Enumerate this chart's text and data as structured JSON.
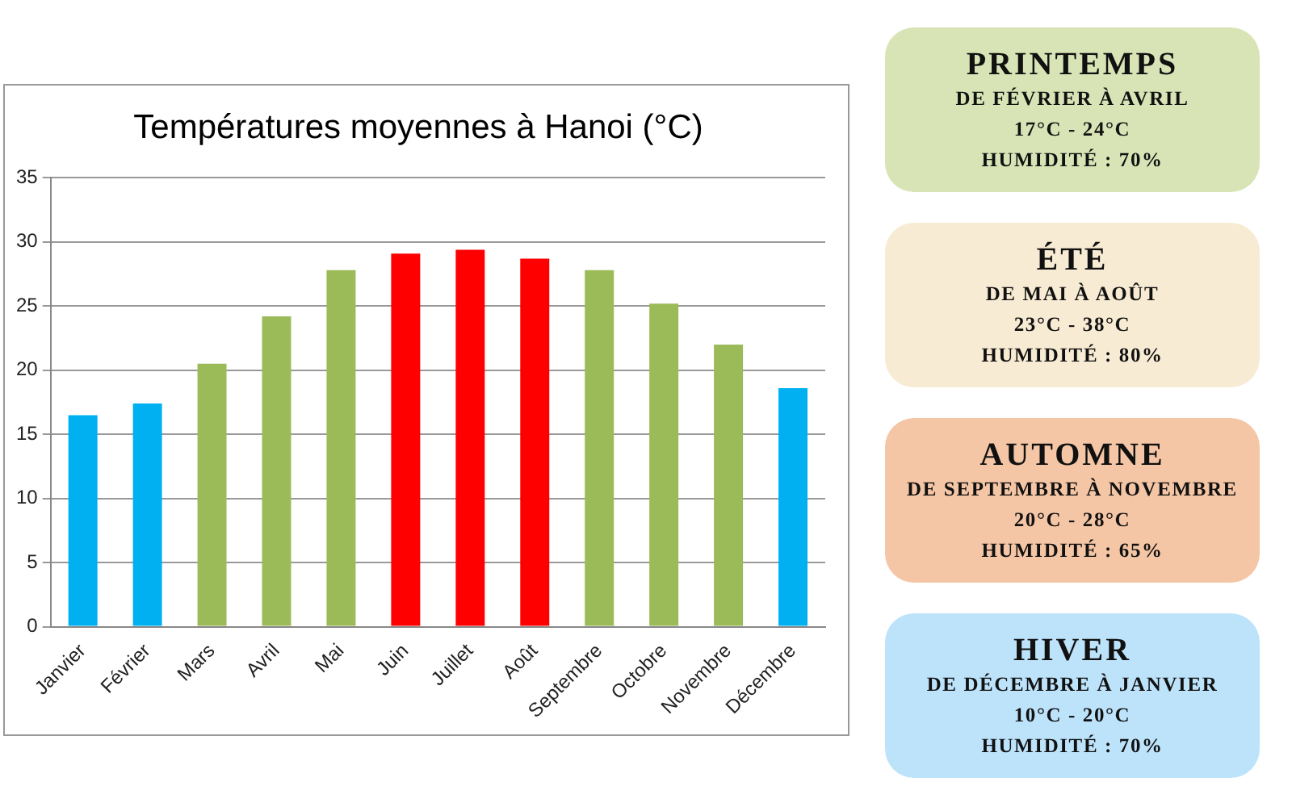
{
  "chart_data": [
    {
      "type": "bar",
      "title": "Températures moyennes à Hanoi (°C)",
      "categories": [
        "Janvier",
        "Février",
        "Mars",
        "Avril",
        "Mai",
        "Juin",
        "Juillet",
        "Août",
        "Septembre",
        "Octobre",
        "Novembre",
        "Décembre"
      ],
      "values": [
        16.5,
        17.4,
        20.5,
        24.2,
        27.8,
        29.1,
        29.4,
        28.7,
        27.8,
        25.2,
        22.0,
        18.6
      ],
      "colors": [
        "#00b0f0",
        "#00b0f0",
        "#9bbb59",
        "#9bbb59",
        "#9bbb59",
        "#ff0000",
        "#ff0000",
        "#ff0000",
        "#9bbb59",
        "#9bbb59",
        "#9bbb59",
        "#00b0f0"
      ],
      "ylim": [
        0,
        35
      ],
      "yticks": [
        0,
        5,
        10,
        15,
        20,
        25,
        30,
        35
      ],
      "grid": "y",
      "legend": false
    },
    {
      "type": "other",
      "title": "PRINTEMPS",
      "annotations": [
        "DE FÉVRIER À AVRIL",
        "17°C - 24°C",
        "HUMIDITÉ : 70%"
      ]
    },
    {
      "type": "other",
      "title": "ÉTÉ",
      "annotations": [
        "DE MAI À AOÛT",
        "23°C - 38°C",
        "HUMIDITÉ : 80%"
      ]
    },
    {
      "type": "other",
      "title": "AUTOMNE",
      "annotations": [
        "DE SEPTEMBRE À NOVEMBRE",
        "20°C - 28°C",
        "HUMIDITÉ : 65%"
      ]
    },
    {
      "type": "other",
      "title": "HIVER",
      "annotations": [
        "DE DÉCEMBRE À JANVIER",
        "10°C - 20°C",
        "HUMIDITÉ : 70%"
      ]
    }
  ]
}
